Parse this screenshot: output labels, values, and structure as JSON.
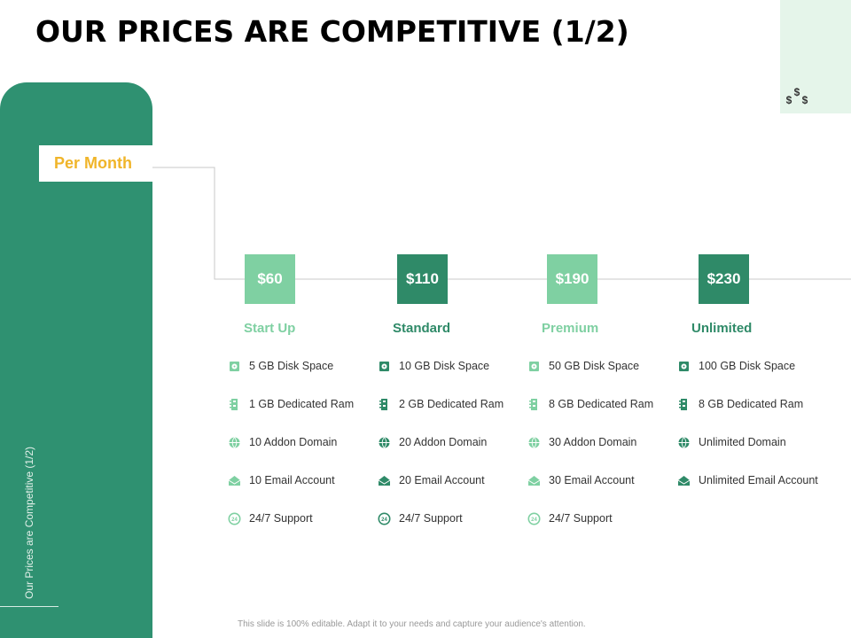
{
  "title": "OUR PRICES ARE COMPETITIVE (1/2)",
  "sidebar": {
    "vertical_label": "Our Prices are Competitive (1/2)"
  },
  "billing": {
    "label": "Per Month"
  },
  "colors": {
    "sidebar": "#2f9171",
    "accent_light": "#7fd0a2",
    "accent_dark": "#2f8a68",
    "per_month_text": "#f0b52a",
    "corner_bg": "#e5f5ea"
  },
  "plans": [
    {
      "price": "$60",
      "name": "Start Up",
      "tone": "light",
      "features": [
        {
          "icon": "disk-icon",
          "text": "5 GB Disk Space"
        },
        {
          "icon": "ram-icon",
          "text": "1 GB Dedicated Ram"
        },
        {
          "icon": "domain-icon",
          "text": "10 Addon Domain"
        },
        {
          "icon": "email-icon",
          "text": "10 Email Account"
        },
        {
          "icon": "support-icon",
          "text": "24/7 Support"
        }
      ]
    },
    {
      "price": "$110",
      "name": "Standard",
      "tone": "dark",
      "features": [
        {
          "icon": "disk-icon",
          "text": "10 GB Disk Space"
        },
        {
          "icon": "ram-icon",
          "text": "2 GB Dedicated Ram"
        },
        {
          "icon": "domain-icon",
          "text": "20 Addon Domain"
        },
        {
          "icon": "email-icon",
          "text": "20 Email Account"
        },
        {
          "icon": "support-icon",
          "text": "24/7 Support"
        }
      ]
    },
    {
      "price": "$190",
      "name": "Premium",
      "tone": "light",
      "features": [
        {
          "icon": "disk-icon",
          "text": "50 GB Disk Space"
        },
        {
          "icon": "ram-icon",
          "text": "8 GB Dedicated Ram"
        },
        {
          "icon": "domain-icon",
          "text": "30 Addon Domain"
        },
        {
          "icon": "email-icon",
          "text": "30 Email Account"
        },
        {
          "icon": "support-icon",
          "text": "24/7 Support"
        }
      ]
    },
    {
      "price": "$230",
      "name": "Unlimited",
      "tone": "dark",
      "features": [
        {
          "icon": "disk-icon",
          "text": "100 GB Disk Space"
        },
        {
          "icon": "ram-icon",
          "text": "8 GB Dedicated Ram"
        },
        {
          "icon": "domain-icon",
          "text": "Unlimited Domain"
        },
        {
          "icon": "email-icon",
          "text": "Unlimited Email Account"
        }
      ]
    }
  ],
  "footer": {
    "note": "This slide is 100% editable. Adapt it to your needs and capture your audience's attention."
  }
}
